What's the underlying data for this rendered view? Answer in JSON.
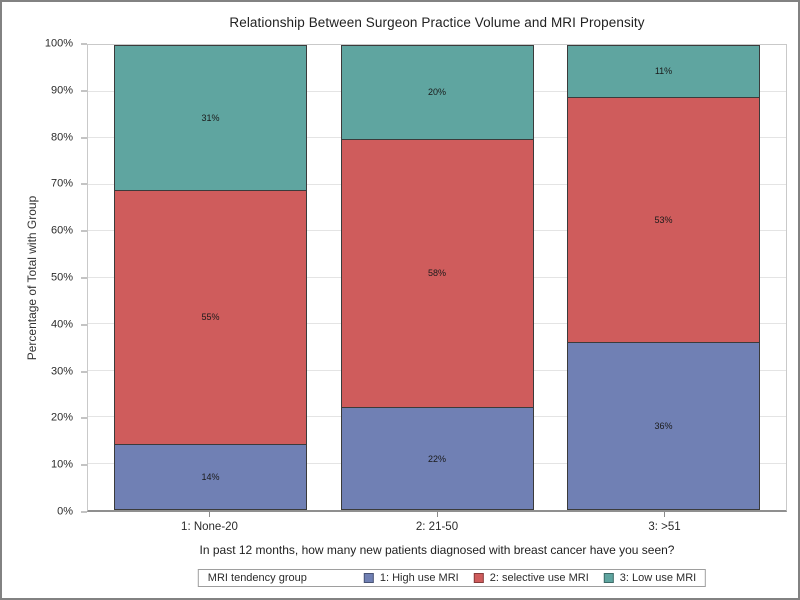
{
  "chart_data": {
    "type": "bar",
    "stacked": true,
    "percent_of_total": true,
    "title": "Relationship Between Surgeon Practice Volume and MRI Propensity",
    "xlabel": "In past 12 months, how many new patients diagnosed with breast cancer have you seen?",
    "ylabel": "Percentage of Total with Group",
    "categories": [
      "1: None-20",
      "2: 21-50",
      "3: >51"
    ],
    "series": [
      {
        "name": "1: High use MRI",
        "color": "#7080B4",
        "values": [
          14,
          22,
          36
        ]
      },
      {
        "name": "2: selective use MRI",
        "color": "#CF5C5C",
        "values": [
          55,
          58,
          53
        ]
      },
      {
        "name": "3: Low use MRI",
        "color": "#5FA5A0",
        "values": [
          31,
          20,
          11
        ]
      }
    ],
    "value_labels": [
      [
        "14%",
        "55%",
        "31%"
      ],
      [
        "22%",
        "58%",
        "20%"
      ],
      [
        "36%",
        "53%",
        "11%"
      ]
    ],
    "ylim": [
      0,
      100
    ],
    "y_ticks": [
      "0%",
      "10%",
      "20%",
      "30%",
      "40%",
      "50%",
      "60%",
      "70%",
      "80%",
      "90%",
      "100%"
    ],
    "grid": "horizontal",
    "legend": {
      "title": "MRI tendency group",
      "position": "bottom"
    },
    "colors": {
      "gridline": "#e4e4e4",
      "wall_border": "#c9c9c9",
      "axis_line": "#8f8f8f",
      "tick": "#8a8a8a",
      "bar_outline": "#3b3b3b",
      "figure_border": "#828282",
      "text": "#222222"
    }
  }
}
